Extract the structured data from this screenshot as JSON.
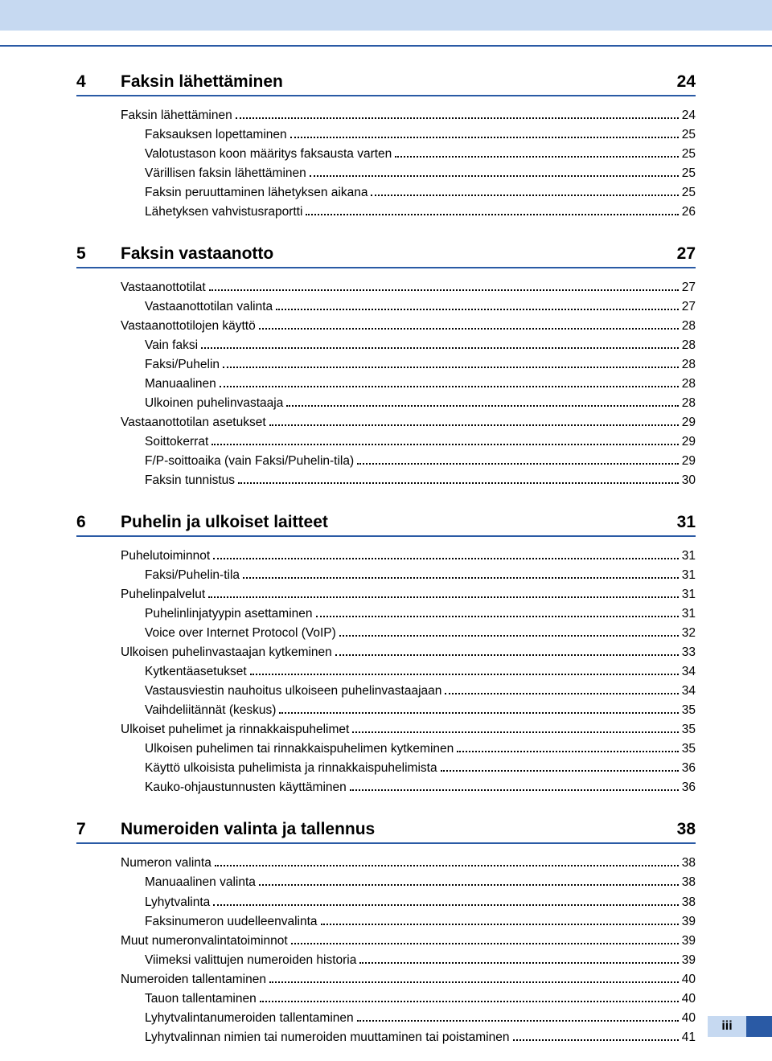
{
  "colors": {
    "band": "#c6d9f1",
    "rule": "#2a5aa5",
    "text": "#000000"
  },
  "typography": {
    "body_size_pt": 11.5,
    "heading_size_pt": 16,
    "heading_weight": "bold"
  },
  "footer": {
    "page_label": "iii"
  },
  "sections": [
    {
      "num": "4",
      "title": "Faksin lähettäminen",
      "page": "24",
      "entries": [
        {
          "label": "Faksin lähettäminen",
          "page": "24",
          "indent": 0
        },
        {
          "label": "Faksauksen lopettaminen",
          "page": "25",
          "indent": 1
        },
        {
          "label": "Valotustason koon määritys faksausta varten",
          "page": "25",
          "indent": 1
        },
        {
          "label": "Värillisen faksin lähettäminen",
          "page": "25",
          "indent": 1
        },
        {
          "label": "Faksin peruuttaminen lähetyksen aikana",
          "page": "25",
          "indent": 1
        },
        {
          "label": "Lähetyksen vahvistusraportti",
          "page": "26",
          "indent": 1
        }
      ]
    },
    {
      "num": "5",
      "title": "Faksin vastaanotto",
      "page": "27",
      "entries": [
        {
          "label": "Vastaanottotilat",
          "page": "27",
          "indent": 0
        },
        {
          "label": "Vastaanottotilan valinta",
          "page": "27",
          "indent": 1
        },
        {
          "label": "Vastaanottotilojen käyttö",
          "page": "28",
          "indent": 0
        },
        {
          "label": "Vain faksi",
          "page": "28",
          "indent": 1
        },
        {
          "label": "Faksi/Puhelin",
          "page": "28",
          "indent": 1
        },
        {
          "label": "Manuaalinen",
          "page": "28",
          "indent": 1
        },
        {
          "label": "Ulkoinen puhelinvastaaja",
          "page": "28",
          "indent": 1
        },
        {
          "label": "Vastaanottotilan asetukset",
          "page": "29",
          "indent": 0
        },
        {
          "label": "Soittokerrat",
          "page": "29",
          "indent": 1
        },
        {
          "label": "F/P-soittoaika (vain Faksi/Puhelin-tila)",
          "page": "29",
          "indent": 1
        },
        {
          "label": "Faksin tunnistus",
          "page": "30",
          "indent": 1
        }
      ]
    },
    {
      "num": "6",
      "title": "Puhelin ja ulkoiset laitteet",
      "page": "31",
      "entries": [
        {
          "label": "Puhelutoiminnot",
          "page": "31",
          "indent": 0
        },
        {
          "label": "Faksi/Puhelin-tila",
          "page": "31",
          "indent": 1
        },
        {
          "label": "Puhelinpalvelut",
          "page": "31",
          "indent": 0
        },
        {
          "label": "Puhelinlinjatyypin asettaminen",
          "page": "31",
          "indent": 1
        },
        {
          "label": "Voice over Internet Protocol (VoIP)",
          "page": "32",
          "indent": 1
        },
        {
          "label": "Ulkoisen puhelinvastaajan kytkeminen",
          "page": "33",
          "indent": 0
        },
        {
          "label": "Kytkentäasetukset",
          "page": "34",
          "indent": 1
        },
        {
          "label": "Vastausviestin nauhoitus ulkoiseen puhelinvastaajaan",
          "page": "34",
          "indent": 1
        },
        {
          "label": "Vaihdeliitännät (keskus)",
          "page": "35",
          "indent": 1
        },
        {
          "label": "Ulkoiset puhelimet ja rinnakkaispuhelimet",
          "page": "35",
          "indent": 0
        },
        {
          "label": "Ulkoisen puhelimen tai rinnakkaispuhelimen kytkeminen",
          "page": "35",
          "indent": 1
        },
        {
          "label": "Käyttö ulkoisista puhelimista ja rinnakkaispuhelimista",
          "page": "36",
          "indent": 1
        },
        {
          "label": "Kauko-ohjaustunnusten käyttäminen",
          "page": "36",
          "indent": 1
        }
      ]
    },
    {
      "num": "7",
      "title": "Numeroiden valinta ja tallennus",
      "page": "38",
      "entries": [
        {
          "label": "Numeron valinta",
          "page": "38",
          "indent": 0
        },
        {
          "label": "Manuaalinen valinta",
          "page": "38",
          "indent": 1
        },
        {
          "label": "Lyhytvalinta",
          "page": "38",
          "indent": 1
        },
        {
          "label": "Faksinumeron uudelleenvalinta",
          "page": "39",
          "indent": 1
        },
        {
          "label": "Muut numeronvalintatoiminnot",
          "page": "39",
          "indent": 0
        },
        {
          "label": "Viimeksi valittujen numeroiden historia",
          "page": "39",
          "indent": 1
        },
        {
          "label": "Numeroiden tallentaminen",
          "page": "40",
          "indent": 0
        },
        {
          "label": "Tauon tallentaminen",
          "page": "40",
          "indent": 1
        },
        {
          "label": "Lyhytvalintanumeroiden tallentaminen",
          "page": "40",
          "indent": 1
        },
        {
          "label": "Lyhytvalinnan nimien tai numeroiden muuttaminen tai poistaminen",
          "page": "41",
          "indent": 1
        }
      ]
    }
  ]
}
